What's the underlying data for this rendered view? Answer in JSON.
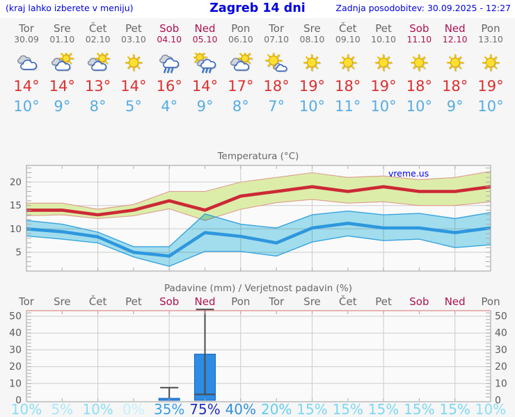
{
  "header": {
    "left_note": "(kraj lahko izberete v meniju)",
    "title": "Zagreb 14 dni",
    "updated": "Zadnja posodobitev: 30.09.2025 - 12:27"
  },
  "colors": {
    "link_blue": "#0000dd",
    "day_gray": "#666666",
    "weekend_red": "#b01050",
    "tmax_red": "#dc2f2f",
    "tmin_blue": "#55ace4",
    "line_red": "#cc2936",
    "line_blue": "#2e97dd",
    "band_green": "#dcedaa",
    "band_green_edge": "#e09a8a",
    "band_cyan": "#a5e2f2",
    "band_cyan_edge": "#36a3de",
    "bar_blue": "#2e8ce2",
    "bar_edge": "#1565c0",
    "whisker_gray": "#4a4a4a",
    "grid": "#cccccc",
    "border": "#999999",
    "precip_top_border": "#dd8a8a",
    "axis_text": "#595959"
  },
  "days": [
    {
      "name": "Tor",
      "date": "30.09",
      "weekend": false,
      "icon": "cloudy",
      "tmax": "14°",
      "tmin": "10°",
      "prob": "10%",
      "prob_color": "#8adef5"
    },
    {
      "name": "Sre",
      "date": "01.10",
      "weekend": false,
      "icon": "sun-cloud",
      "tmax": "14°",
      "tmin": "9°",
      "prob": "5%",
      "prob_color": "#a9e9f8"
    },
    {
      "name": "Čet",
      "date": "02.10",
      "weekend": false,
      "icon": "sun-cloud",
      "tmax": "13°",
      "tmin": "8°",
      "prob": "10%",
      "prob_color": "#8adef5"
    },
    {
      "name": "Pet",
      "date": "03.10",
      "weekend": false,
      "icon": "sunny",
      "tmax": "14°",
      "tmin": "5°",
      "prob": "0%",
      "prob_color": "#c3f0fb"
    },
    {
      "name": "Sob",
      "date": "04.10",
      "weekend": true,
      "icon": "rain",
      "tmax": "16°",
      "tmin": "4°",
      "prob": "35%",
      "prob_color": "#38a0e3"
    },
    {
      "name": "Ned",
      "date": "05.10",
      "weekend": true,
      "icon": "sun-rain",
      "tmax": "14°",
      "tmin": "9°",
      "prob": "75%",
      "prob_color": "#1c2fbe"
    },
    {
      "name": "Pon",
      "date": "06.10",
      "weekend": false,
      "icon": "sun-cloud",
      "tmax": "17°",
      "tmin": "8°",
      "prob": "40%",
      "prob_color": "#2f8fda"
    },
    {
      "name": "Tor",
      "date": "07.10",
      "weekend": false,
      "icon": "mostly-sunny",
      "tmax": "18°",
      "tmin": "7°",
      "prob": "20%",
      "prob_color": "#60cff1"
    },
    {
      "name": "Sre",
      "date": "08.10",
      "weekend": false,
      "icon": "sunny",
      "tmax": "19°",
      "tmin": "10°",
      "prob": "15%",
      "prob_color": "#79d8f3"
    },
    {
      "name": "Čet",
      "date": "09.10",
      "weekend": false,
      "icon": "sunny",
      "tmax": "18°",
      "tmin": "11°",
      "prob": "15%",
      "prob_color": "#79d8f3"
    },
    {
      "name": "Pet",
      "date": "10.10",
      "weekend": false,
      "icon": "sunny",
      "tmax": "19°",
      "tmin": "10°",
      "prob": "15%",
      "prob_color": "#79d8f3"
    },
    {
      "name": "Sob",
      "date": "11.10",
      "weekend": true,
      "icon": "sunny",
      "tmax": "18°",
      "tmin": "10°",
      "prob": "15%",
      "prob_color": "#79d8f3"
    },
    {
      "name": "Ned",
      "date": "12.10",
      "weekend": true,
      "icon": "sunny",
      "tmax": "18°",
      "tmin": "9°",
      "prob": "15%",
      "prob_color": "#79d8f3"
    },
    {
      "name": "Pon",
      "date": "13.10",
      "weekend": false,
      "icon": "sunny",
      "tmax": "19°",
      "tmin": "10°",
      "prob": "10%",
      "prob_color": "#8adef5"
    }
  ],
  "chart_data": [
    {
      "type": "line",
      "title": "Temperatura (°C)",
      "watermark": "vreme.us",
      "x_labels": [
        "30.09",
        "01.10",
        "02.10",
        "03.10",
        "04.10",
        "05.10",
        "06.10",
        "07.10",
        "08.10",
        "09.10",
        "10.10",
        "11.10",
        "12.10",
        "13.10"
      ],
      "yticks": [
        5,
        10,
        15,
        20
      ],
      "ylim": [
        1,
        23.5
      ],
      "grid": true,
      "series": [
        {
          "name": "tmax",
          "values": [
            14,
            14,
            13,
            14,
            16,
            14,
            17,
            18,
            19,
            18,
            19,
            18,
            18,
            19
          ]
        },
        {
          "name": "tmax_range_hi",
          "values": [
            15.5,
            15.5,
            14.2,
            15.2,
            18,
            18,
            20,
            21,
            22,
            21,
            21.3,
            20.5,
            21,
            22.3
          ]
        },
        {
          "name": "tmax_range_lo",
          "values": [
            12.8,
            13,
            12.2,
            12.8,
            14.3,
            11.8,
            14.2,
            15.6,
            16.3,
            15.5,
            15.8,
            15,
            15,
            15.8
          ]
        },
        {
          "name": "tmin",
          "values": [
            10,
            9.4,
            8.3,
            5,
            4.2,
            9.2,
            8.4,
            7,
            10.2,
            11.2,
            10.2,
            10.2,
            9.2,
            10.2
          ]
        },
        {
          "name": "tmin_range_hi",
          "values": [
            11.8,
            11,
            9.3,
            6.2,
            6.2,
            13.2,
            11,
            10.2,
            13,
            13.8,
            13,
            13.3,
            12.2,
            13.5
          ]
        },
        {
          "name": "tmin_range_lo",
          "values": [
            8.5,
            7.8,
            7,
            4,
            2,
            5.2,
            5.2,
            4.2,
            7.2,
            8.5,
            7.5,
            7.8,
            6,
            6.6
          ]
        }
      ]
    },
    {
      "type": "bar",
      "title": "Padavine (mm) / Verjetnost padavin (%)",
      "categories": [
        "Tor",
        "Sre",
        "Čet",
        "Pet",
        "Sob",
        "Ned",
        "Pon",
        "Tor",
        "Sre",
        "Čet",
        "Pet",
        "Sob",
        "Ned",
        "Pon"
      ],
      "weekend_idx": [
        4,
        5,
        11,
        12
      ],
      "yticks": [
        0,
        10,
        20,
        30,
        40,
        50
      ],
      "ylim": [
        0,
        53
      ],
      "grid": true,
      "values_mm": [
        0,
        0,
        0,
        0,
        1.2,
        27.5,
        0,
        0,
        0,
        0,
        0,
        0,
        0,
        0
      ],
      "error_bars": [
        {
          "day": 4,
          "lo": 1.2,
          "hi": 7.5
        },
        {
          "day": 5,
          "lo": 3.5,
          "hi": 54
        }
      ],
      "probabilities": [
        "10%",
        "5%",
        "10%",
        "0%",
        "35%",
        "75%",
        "40%",
        "20%",
        "15%",
        "15%",
        "15%",
        "15%",
        "15%",
        "10%"
      ]
    }
  ]
}
